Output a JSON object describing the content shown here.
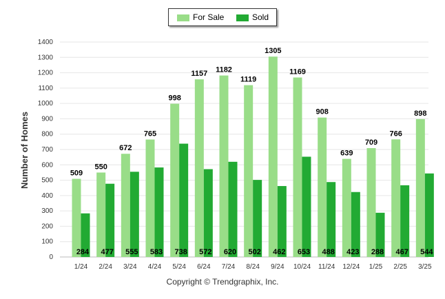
{
  "chart_data": {
    "type": "bar",
    "ylabel": "Number of Homes",
    "xlabel": "",
    "ylim": [
      0,
      1400
    ],
    "yticks": [
      0,
      100,
      200,
      300,
      400,
      500,
      600,
      700,
      800,
      900,
      1000,
      1100,
      1200,
      1300,
      1400
    ],
    "grid": true,
    "legend_position": "top-center",
    "categories": [
      "1/24",
      "2/24",
      "3/24",
      "4/24",
      "5/24",
      "6/24",
      "7/24",
      "8/24",
      "9/24",
      "10/24",
      "11/24",
      "12/24",
      "1/25",
      "2/25",
      "3/25"
    ],
    "series": [
      {
        "name": "For Sale",
        "color": "#99dd88",
        "values": [
          509,
          550,
          672,
          765,
          998,
          1157,
          1182,
          1119,
          1305,
          1169,
          908,
          639,
          709,
          766,
          898
        ]
      },
      {
        "name": "Sold",
        "color": "#22aa33",
        "values": [
          284,
          477,
          555,
          583,
          738,
          572,
          620,
          502,
          462,
          653,
          488,
          423,
          288,
          467,
          544
        ]
      }
    ]
  },
  "legend": {
    "for_sale": "For Sale",
    "sold": "Sold"
  },
  "footer": {
    "copyright": "Copyright © Trendgraphix, Inc."
  }
}
